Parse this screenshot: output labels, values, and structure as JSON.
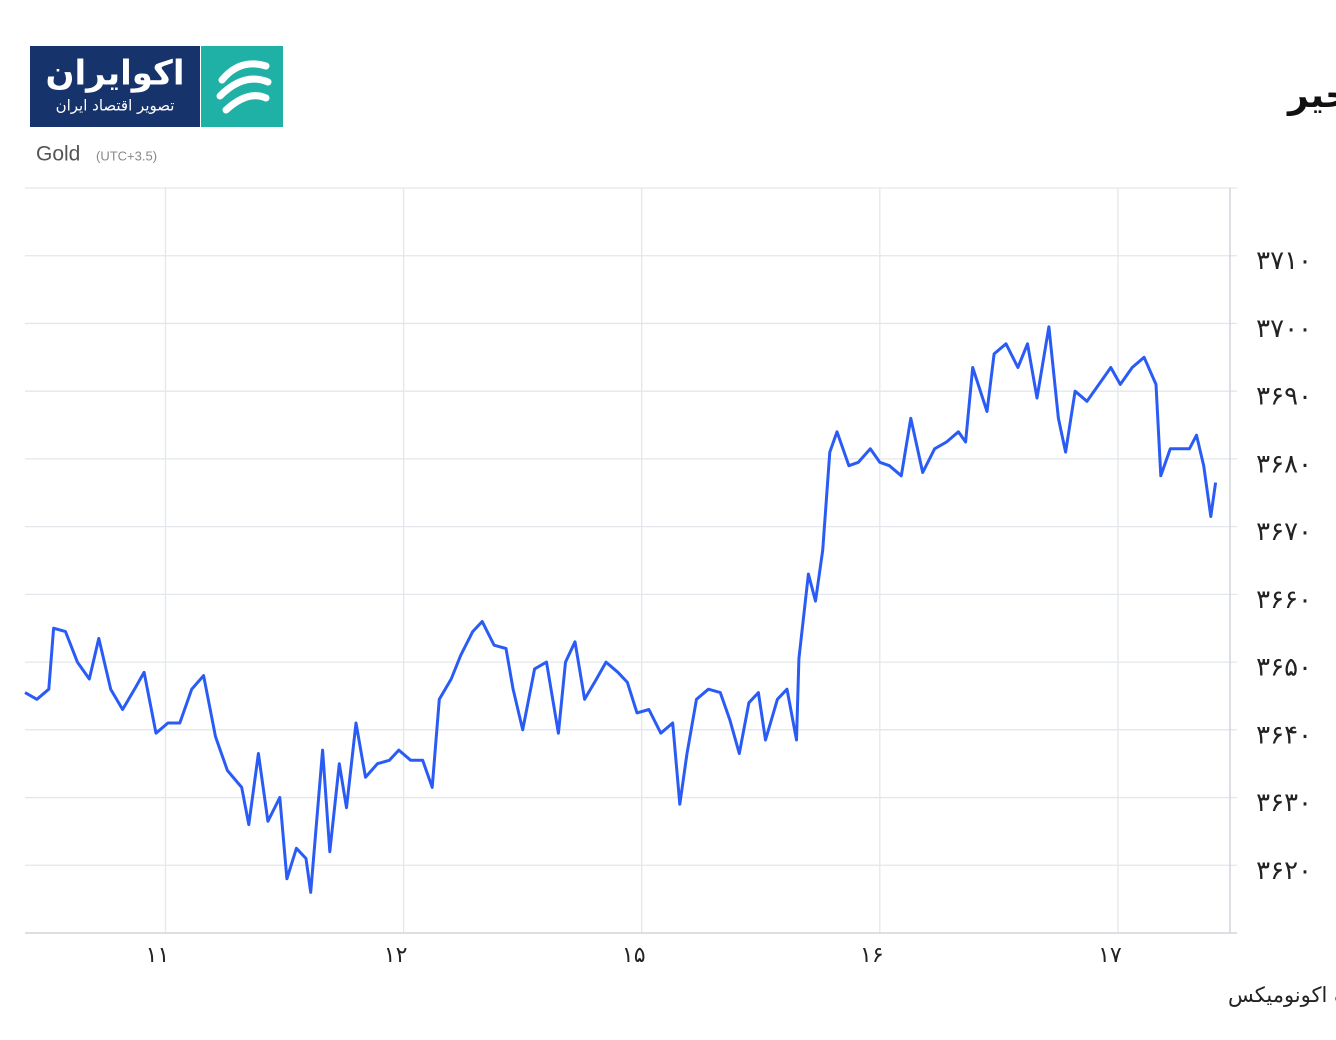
{
  "logo": {
    "name": "اکوایران",
    "tagline": "تصویر اقتصاد ایران"
  },
  "chart_data": {
    "type": "line",
    "title": "روند طلای جهانی در یک هفته اخیر",
    "subtitle": "Gold",
    "timezone": "(UTC+3.5)",
    "source": "منبع: تریدینگ اکونومیکس",
    "grid": true,
    "x": [
      -0.59,
      -0.54,
      -0.49,
      -0.47,
      -0.42,
      -0.37,
      -0.32,
      -0.28,
      -0.23,
      -0.18,
      -0.13,
      -0.09,
      -0.04,
      0.01,
      0.06,
      0.11,
      0.16,
      0.21,
      0.26,
      0.32,
      0.35,
      0.39,
      0.43,
      0.48,
      0.51,
      0.55,
      0.59,
      0.61,
      0.66,
      0.69,
      0.73,
      0.76,
      0.8,
      0.84,
      0.89,
      0.94,
      0.98,
      1.03,
      1.08,
      1.12,
      1.15,
      1.2,
      1.24,
      1.29,
      1.33,
      1.38,
      1.43,
      1.46,
      1.5,
      1.55,
      1.6,
      1.65,
      1.68,
      1.72,
      1.76,
      1.81,
      1.85,
      1.9,
      1.94,
      1.98,
      2.03,
      2.08,
      2.13,
      2.16,
      2.19,
      2.23,
      2.28,
      2.33,
      2.37,
      2.41,
      2.45,
      2.49,
      2.52,
      2.57,
      2.61,
      2.65,
      2.66,
      2.7,
      2.73,
      2.76,
      2.79,
      2.82,
      2.87,
      2.91,
      2.96,
      3.0,
      3.04,
      3.09,
      3.13,
      3.18,
      3.23,
      3.28,
      3.33,
      3.36,
      3.39,
      3.45,
      3.48,
      3.53,
      3.58,
      3.62,
      3.66,
      3.71,
      3.75,
      3.78,
      3.82,
      3.87,
      3.92,
      3.97,
      4.01,
      4.06,
      4.11,
      4.16,
      4.18,
      4.22,
      4.26,
      4.3,
      4.33,
      4.36,
      4.39,
      4.41
    ],
    "series": [
      {
        "name": "Gold",
        "color": "#2a5cf5",
        "values": [
          3645.5,
          3644.5,
          3646,
          3655,
          3654.5,
          3650,
          3647.5,
          3653.5,
          3646,
          3643,
          3646,
          3648.5,
          3639.5,
          3641,
          3641,
          3646,
          3648,
          3639,
          3634,
          3631.5,
          3626,
          3636.5,
          3626.5,
          3630,
          3618,
          3622.5,
          3621,
          3616,
          3637,
          3622,
          3635,
          3628.5,
          3641,
          3633,
          3635,
          3635.5,
          3637,
          3635.5,
          3635.5,
          3631.5,
          3644.5,
          3647.5,
          3651,
          3654.5,
          3656,
          3652.5,
          3652,
          3646,
          3640,
          3649,
          3650,
          3639.5,
          3650,
          3653,
          3644.5,
          3647.5,
          3650,
          3648.5,
          3647,
          3642.5,
          3643,
          3639.5,
          3641,
          3629,
          3636.5,
          3644.5,
          3646,
          3645.5,
          3641.5,
          3636.5,
          3644,
          3645.5,
          3638.5,
          3644.5,
          3646,
          3638.5,
          3650.5,
          3663,
          3659,
          3666.5,
          3681,
          3684,
          3679,
          3679.5,
          3681.5,
          3679.5,
          3679,
          3677.5,
          3686,
          3678,
          3681.5,
          3682.5,
          3684,
          3682.5,
          3693.5,
          3687,
          3695.5,
          3697,
          3693.5,
          3697,
          3689,
          3699.5,
          3686,
          3681,
          3690,
          3688.5,
          3691,
          3693.5,
          3691,
          3693.5,
          3695,
          3691,
          3677.5,
          3681.5,
          3681.5,
          3681.5,
          3683.5,
          3679,
          3671.5,
          3676.5
        ]
      }
    ],
    "xlim": [
      -0.59,
      4.5
    ],
    "xticks": [
      {
        "value": 0,
        "label": "۱۱"
      },
      {
        "value": 1,
        "label": "۱۲"
      },
      {
        "value": 2,
        "label": "۱۵"
      },
      {
        "value": 3,
        "label": "۱۶"
      },
      {
        "value": 4,
        "label": "۱۷"
      }
    ],
    "ylim": [
      3610,
      3720
    ],
    "yticks": [
      {
        "value": 3620,
        "label": "۳۶۲۰"
      },
      {
        "value": 3630,
        "label": "۳۶۳۰"
      },
      {
        "value": 3640,
        "label": "۳۶۴۰"
      },
      {
        "value": 3650,
        "label": "۳۶۵۰"
      },
      {
        "value": 3660,
        "label": "۳۶۶۰"
      },
      {
        "value": 3670,
        "label": "۳۶۷۰"
      },
      {
        "value": 3680,
        "label": "۳۶۸۰"
      },
      {
        "value": 3690,
        "label": "۳۶۹۰"
      },
      {
        "value": 3700,
        "label": "۳۷۰۰"
      },
      {
        "value": 3710,
        "label": "۳۷۱۰"
      }
    ]
  }
}
